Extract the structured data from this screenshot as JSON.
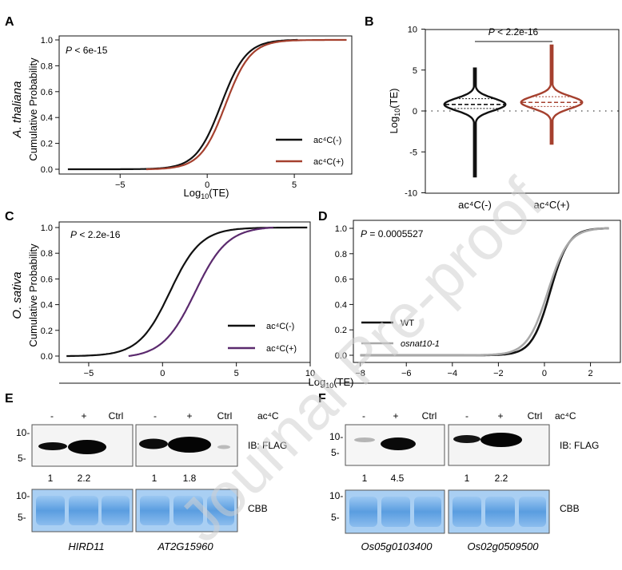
{
  "panels": {
    "A": "A",
    "B": "B",
    "C": "C",
    "D": "D",
    "E": "E",
    "F": "F"
  },
  "watermark": "Journal Pre-proof",
  "species": {
    "A": "A. thaliana",
    "C": "O. sativa"
  },
  "chart_data": [
    {
      "panel": "A",
      "type": "line",
      "title": "",
      "xlabel": "Log10(TE)",
      "ylabel": "Cumulative Probability",
      "xlim": [
        -8.5,
        8.3
      ],
      "ylim": [
        0,
        1
      ],
      "xticks": [
        -5,
        0,
        5
      ],
      "xtick_labels": [
        "−5",
        "0",
        "5"
      ],
      "yticks": [
        0.0,
        0.2,
        0.4,
        0.6,
        0.8,
        1.0
      ],
      "ytick_labels": [
        "0.0",
        "0.2",
        "0.4",
        "0.6",
        "0.8",
        "1.0"
      ],
      "annotation": "P < 6e-15",
      "legend_position": "bottom-right",
      "series": [
        {
          "name": "ac4C(-)",
          "legend_label": "ac⁴C(-)",
          "color": "#111111",
          "x_range": [
            -8,
            5.2
          ],
          "center": 0.8,
          "scale": 0.72
        },
        {
          "name": "ac4C(+)",
          "legend_label": "ac⁴C(+)",
          "color": "#a5402e",
          "x_range": [
            -3.5,
            8
          ],
          "center": 1.05,
          "scale": 0.72
        }
      ]
    },
    {
      "panel": "B",
      "type": "violin",
      "ylabel": "Log10(TE)",
      "ylim": [
        -10,
        10
      ],
      "yticks": [
        -10,
        -5,
        0,
        5,
        10
      ],
      "categories": [
        "ac⁴C(-)",
        "ac⁴C(+)"
      ],
      "annotation": "P < 2.2e-16",
      "series": [
        {
          "name": "ac⁴C(-)",
          "color": "#111111",
          "min": -8,
          "max": 5.2,
          "q1": 0.3,
          "median": 0.8,
          "q3": 1.5
        },
        {
          "name": "ac⁴C(+)",
          "color": "#a5402e",
          "min": -4,
          "max": 8,
          "q1": 0.55,
          "median": 1.05,
          "q3": 1.75
        }
      ]
    },
    {
      "panel": "C",
      "type": "line",
      "xlabel": "Log10(TE)",
      "ylabel": "Cumulative Probability",
      "xlim": [
        -7,
        10
      ],
      "ylim": [
        0,
        1
      ],
      "xticks": [
        -5,
        0,
        5,
        10
      ],
      "xtick_labels": [
        "−5",
        "0",
        "5",
        "10"
      ],
      "yticks": [
        0.0,
        0.2,
        0.4,
        0.6,
        0.8,
        1.0
      ],
      "ytick_labels": [
        "0.0",
        "0.2",
        "0.4",
        "0.6",
        "0.8",
        "1.0"
      ],
      "annotation": "P < 2.2e-16",
      "legend_position": "bottom-right",
      "series": [
        {
          "name": "ac4C(-)",
          "legend_label": "ac⁴C(-)",
          "color": "#111111",
          "x_range": [
            -6.5,
            9.8
          ],
          "center": 0.5,
          "scale": 1.05
        },
        {
          "name": "ac4C(+)",
          "legend_label": "ac⁴C(+)",
          "color": "#5b2a6e",
          "x_range": [
            -2.3,
            7.5
          ],
          "center": 2.2,
          "scale": 1.1
        }
      ]
    },
    {
      "panel": "D",
      "type": "line",
      "xlabel": "Log10(TE)",
      "xlim": [
        -8.3,
        3.3
      ],
      "ylim": [
        0,
        1
      ],
      "xticks": [
        -8,
        -6,
        -4,
        -2,
        0,
        2
      ],
      "xtick_labels": [
        "−8",
        "−6",
        "−4",
        "−2",
        "0",
        "2"
      ],
      "yticks": [
        0.0,
        0.2,
        0.4,
        0.6,
        0.8,
        1.0
      ],
      "ytick_labels": [
        "0.0",
        "0.2",
        "0.4",
        "0.6",
        "0.8",
        "1.0"
      ],
      "annotation": "P = 0.0005527",
      "legend_position": "bottom-left",
      "series": [
        {
          "name": "WT",
          "legend_label": "WT",
          "color": "#111111",
          "x_range": [
            -8,
            2.8
          ],
          "center": 0.25,
          "scale": 0.4
        },
        {
          "name": "osnat10-1",
          "legend_label": "osnat10-1",
          "color": "#a8a8a8",
          "x_range": [
            -8,
            2.8
          ],
          "center": 0.15,
          "scale": 0.45
        }
      ]
    }
  ],
  "blots": {
    "E": {
      "lane_labels_left": [
        "-",
        "+",
        "Ctrl"
      ],
      "lane_labels_right": [
        "-",
        "+",
        "Ctrl"
      ],
      "ac4c_label": "ac⁴C",
      "ib_label": "IB: FLAG",
      "cbb_label": "CBB",
      "markers_top": [
        "10-",
        "5-"
      ],
      "markers_bottom": [
        "10-",
        "5-"
      ],
      "quant_left": [
        "1",
        "2.2"
      ],
      "quant_right": [
        "1",
        "1.8"
      ],
      "genes": [
        "HIRD11",
        "AT2G15960"
      ]
    },
    "F": {
      "lane_labels_left": [
        "-",
        "+",
        "Ctrl"
      ],
      "lane_labels_right": [
        "-",
        "+",
        "Ctrl"
      ],
      "ac4c_label": "ac⁴C",
      "ib_label": "IB: FLAG",
      "cbb_label": "CBB",
      "markers_top": [
        "10-",
        "5-"
      ],
      "markers_bottom": [
        "10-",
        "5-"
      ],
      "quant_left": [
        "1",
        "4.5"
      ],
      "quant_right": [
        "1",
        "2.2"
      ],
      "genes": [
        "Os05g0103400",
        "Os02g0509500"
      ]
    }
  },
  "colors": {
    "black": "#111111",
    "brown": "#a5402e",
    "purple": "#5b2a6e",
    "gray": "#a8a8a8",
    "cbb": "#4a8fd6",
    "cbb_bg": "#7fb7ec"
  }
}
